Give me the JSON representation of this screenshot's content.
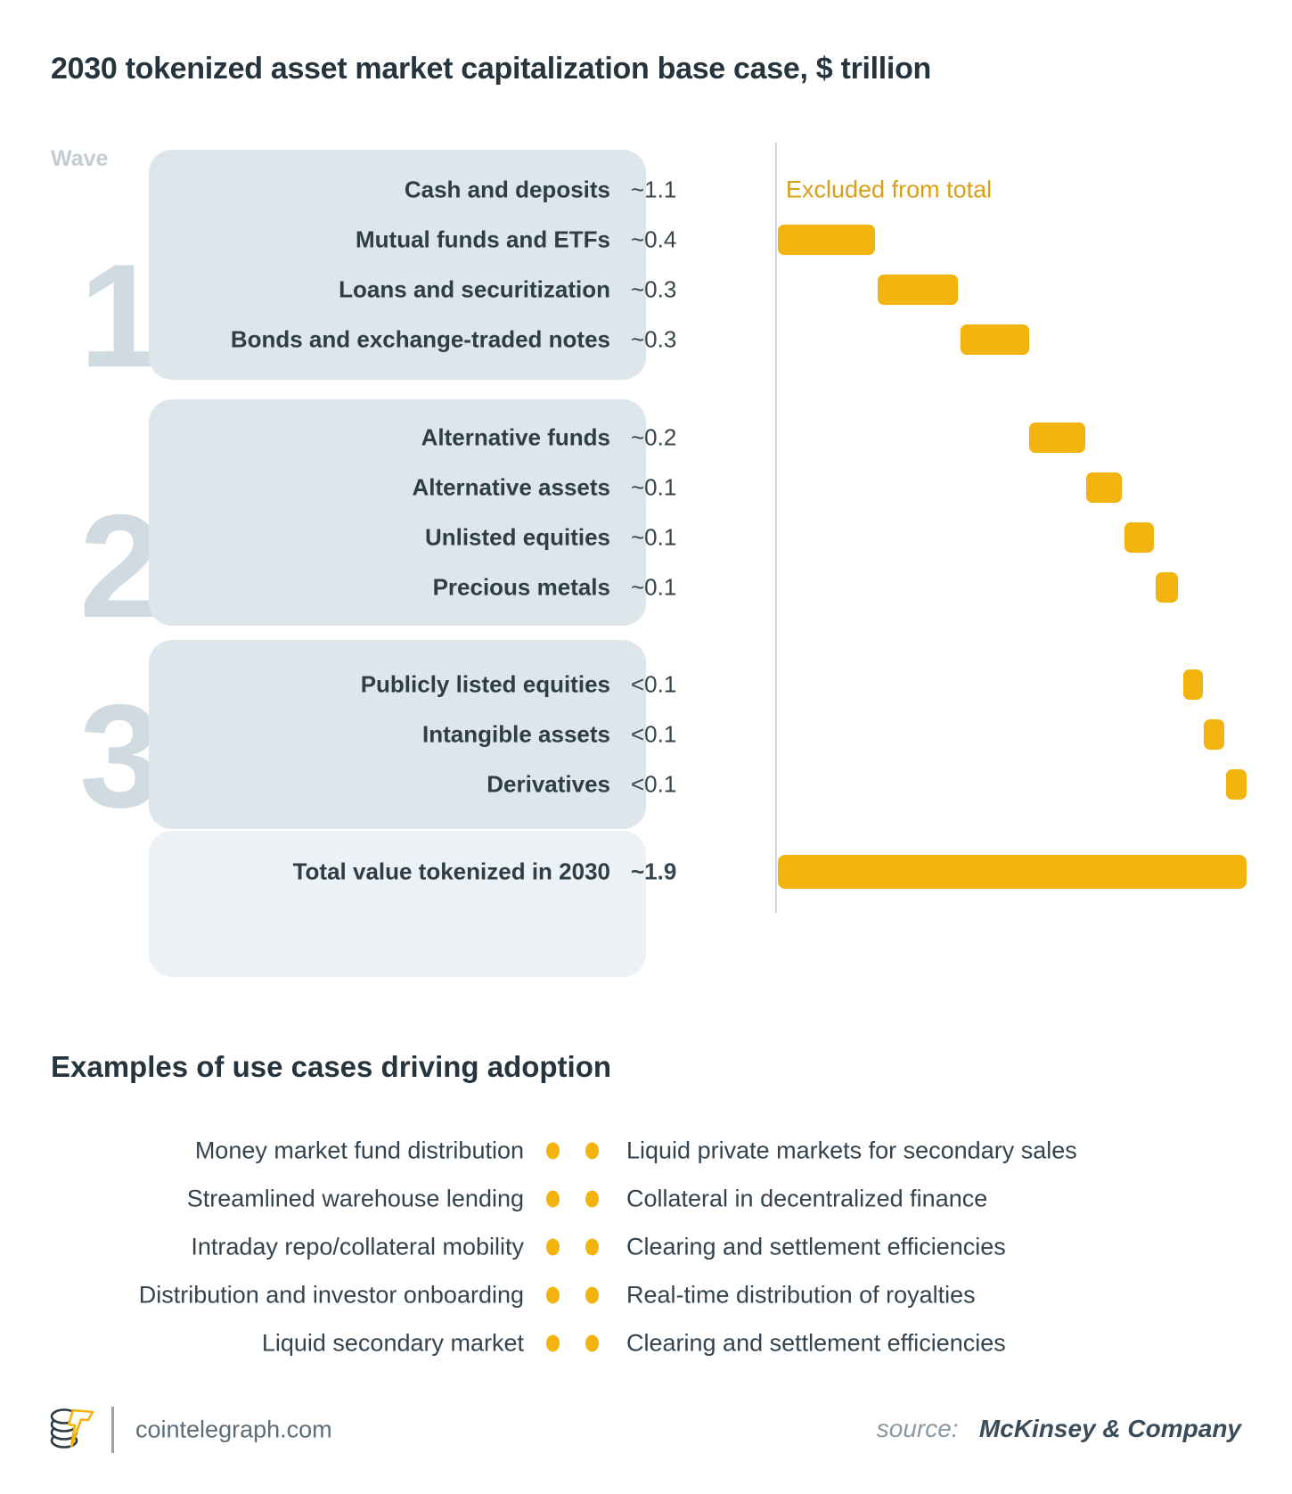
{
  "title": "2030 tokenized asset market capitalization base case, $ trillion",
  "wave_label": "Wave",
  "excluded_note": "Excluded from total",
  "chart_data": {
    "type": "bar",
    "subtype": "waterfall",
    "title": "2030 tokenized asset market capitalization base case, $ trillion",
    "unit": "$ trillion",
    "axis_max": 1.92,
    "axis_orientation": "horizontal",
    "waves": [
      {
        "number": "1",
        "rows": [
          {
            "label": "Cash and deposits",
            "value_label": "~1.1",
            "value": 1.1,
            "excluded": true
          },
          {
            "label": "Mutual funds and ETFs",
            "value_label": "~0.4",
            "value": 0.4,
            "start": 0.005,
            "end": 0.4
          },
          {
            "label": "Loans and securitization",
            "value_label": "~0.3",
            "value": 0.3,
            "start": 0.41,
            "end": 0.74
          },
          {
            "label": "Bonds and exchange-traded notes",
            "value_label": "~0.3",
            "value": 0.3,
            "start": 0.75,
            "end": 1.03
          }
        ]
      },
      {
        "number": "2",
        "rows": [
          {
            "label": "Alternative funds",
            "value_label": "~0.2",
            "value": 0.2,
            "start": 1.03,
            "end": 1.26
          },
          {
            "label": "Alternative assets",
            "value_label": "~0.1",
            "value": 0.1,
            "start": 1.265,
            "end": 1.41
          },
          {
            "label": "Unlisted equities",
            "value_label": "~0.1",
            "value": 0.1,
            "start": 1.42,
            "end": 1.54
          },
          {
            "label": "Precious metals",
            "value_label": "~0.1",
            "value": 0.1,
            "start": 1.55,
            "end": 1.64
          }
        ]
      },
      {
        "number": "3",
        "rows": [
          {
            "label": "Publicly listed equities",
            "value_label": "<0.1",
            "value": 0.09,
            "start": 1.66,
            "end": 1.74
          },
          {
            "label": "Intangible assets",
            "value_label": "<0.1",
            "value": 0.09,
            "start": 1.745,
            "end": 1.83
          },
          {
            "label": "Derivatives",
            "value_label": "<0.1",
            "value": 0.09,
            "start": 1.835,
            "end": 1.92
          }
        ]
      }
    ],
    "total": {
      "label": "Total value tokenized in 2030",
      "value_label": "~1.9",
      "value": 1.9,
      "start": 0.005,
      "end": 1.92
    },
    "annotations": [
      "Excluded from total"
    ],
    "legend": "none",
    "grid": "off"
  },
  "use_cases": {
    "heading": "Examples of use cases driving adoption",
    "pairs": [
      {
        "left": "Money market fund distribution",
        "right": "Liquid private markets for secondary sales"
      },
      {
        "left": "Streamlined warehouse lending",
        "right": "Collateral in decentralized finance"
      },
      {
        "left": "Intraday repo/collateral mobility",
        "right": "Clearing and settlement efficiencies"
      },
      {
        "left": "Distribution and investor onboarding",
        "right": "Real-time distribution of royalties"
      },
      {
        "left": "Liquid secondary market",
        "right": "Clearing and settlement efficiencies"
      }
    ]
  },
  "footer": {
    "site": "cointelegraph.com",
    "source_prefix": "source:",
    "source_name": "McKinsey & Company"
  },
  "colors": {
    "bar": "#f2b30d",
    "excluded_text": "#d9a017",
    "panel": "#dde7eb",
    "panel_total": "#ebf1f4",
    "wave_digit": "#cfdbe0",
    "ink": "#2c3b45",
    "muted": "#5d6d78"
  }
}
